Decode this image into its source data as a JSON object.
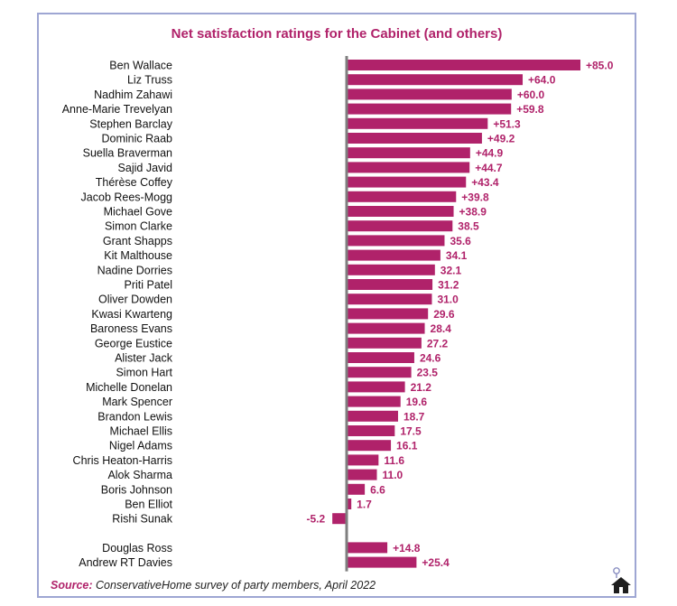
{
  "chart_data": {
    "type": "bar",
    "orientation": "horizontal",
    "title": "Net satisfaction ratings for the Cabinet (and others)",
    "xlabel": "",
    "ylabel": "",
    "xlim": [
      -12,
      90
    ],
    "bar_color": "#b0226a",
    "label_color": "#b0226a",
    "axis_color": "#7f7f7f",
    "grid": false,
    "categories": [
      "Ben Wallace",
      "Liz Truss",
      "Nadhim Zahawi",
      "Anne-Marie Trevelyan",
      "Stephen Barclay",
      "Dominic Raab",
      "Suella Braverman",
      "Sajid Javid",
      "Thérèse Coffey",
      "Jacob Rees-Mogg",
      "Michael Gove",
      "Simon Clarke",
      "Grant Shapps",
      "Kit Malthouse",
      "Nadine Dorries",
      "Priti Patel",
      "Oliver Dowden",
      "Kwasi Kwarteng",
      "Baroness Evans",
      "George Eustice",
      "Alister Jack",
      "Simon Hart",
      "Michelle Donelan",
      "Mark Spencer",
      "Brandon Lewis",
      "Michael Ellis",
      "Nigel Adams",
      "Chris Heaton-Harris",
      "Alok Sharma",
      "Boris Johnson",
      "Ben Elliot",
      "Rishi Sunak",
      "Douglas Ross",
      "Andrew RT Davies"
    ],
    "values": [
      85.0,
      64.0,
      60.0,
      59.8,
      51.3,
      49.2,
      44.9,
      44.7,
      43.4,
      39.8,
      38.9,
      38.5,
      35.6,
      34.1,
      32.1,
      31.2,
      31.0,
      29.6,
      28.4,
      27.2,
      24.6,
      23.5,
      21.2,
      19.6,
      18.7,
      17.5,
      16.1,
      11.6,
      11.0,
      6.6,
      1.7,
      -5.2,
      14.8,
      25.4
    ],
    "data_labels": [
      "+85.0",
      "+64.0",
      "+60.0",
      "+59.8",
      "+51.3",
      "+49.2",
      "+44.9",
      "+44.7",
      "+43.4",
      "+39.8",
      "+38.9",
      "38.5",
      "35.6",
      "34.1",
      "32.1",
      "31.2",
      "31.0",
      "29.6",
      "28.4",
      "27.2",
      "24.6",
      "23.5",
      "21.2",
      "19.6",
      "18.7",
      "17.5",
      "16.1",
      "11.6",
      "11.0",
      "6.6",
      "1.7",
      "-5.2",
      "+14.8",
      "+25.4"
    ]
  },
  "source": {
    "label": "Source:",
    "text": "ConservativeHome survey of party members, April 2022"
  },
  "logo": {
    "icon": "house-logo-icon"
  }
}
